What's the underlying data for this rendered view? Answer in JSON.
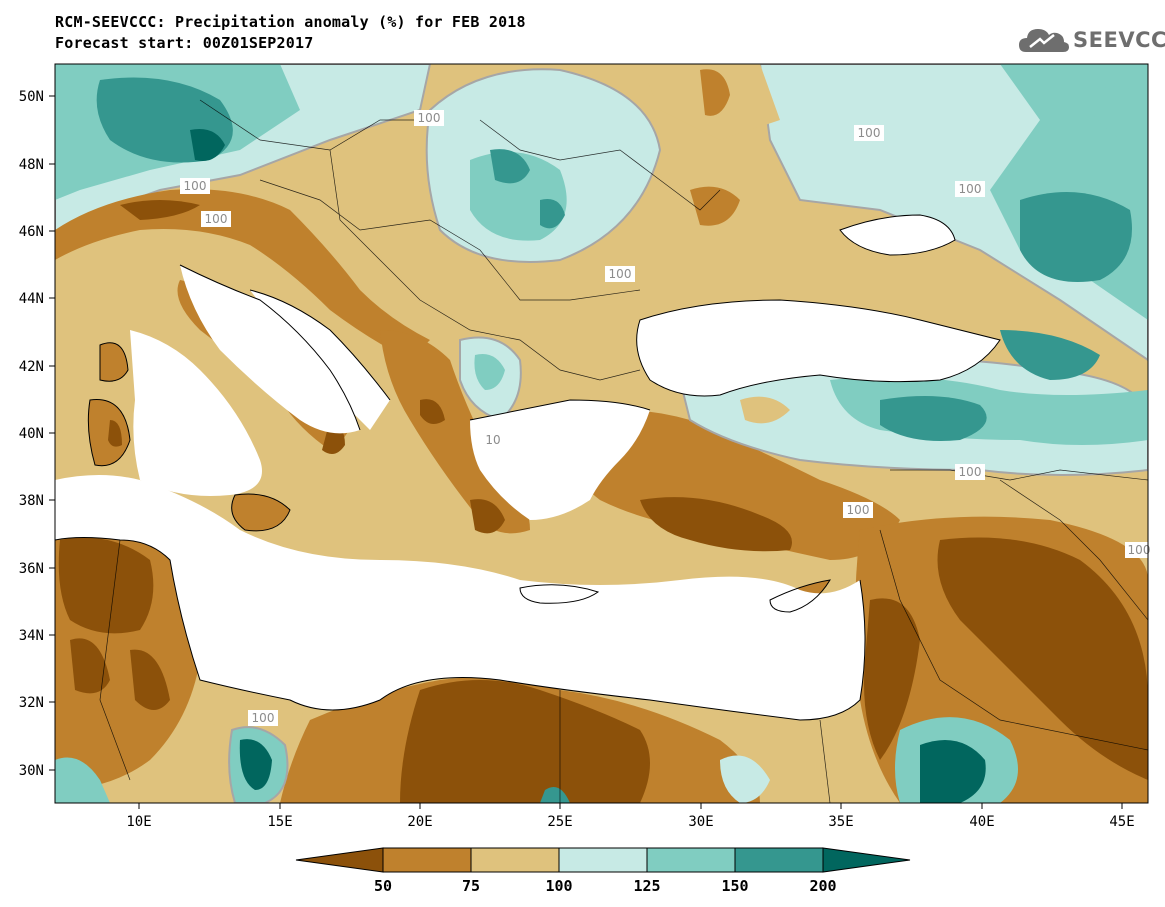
{
  "header": {
    "title": "RCM-SEEVCCC: Precipitation anomaly (%) for FEB 2018",
    "subtitle": "Forecast start: 00Z01SEP2017"
  },
  "logo": {
    "text": "SEEVCCC",
    "icon": "cloud-icon",
    "color": "#6e6e6e"
  },
  "map": {
    "lat_labels": [
      "50N",
      "48N",
      "46N",
      "44N",
      "42N",
      "40N",
      "38N",
      "36N",
      "34N",
      "32N",
      "30N"
    ],
    "lon_labels": [
      "10E",
      "15E",
      "20E",
      "25E",
      "30E",
      "35E",
      "40E",
      "45E"
    ],
    "contour_labels": [
      "100",
      "100",
      "100",
      "100",
      "100",
      "100",
      "100",
      "100",
      "10",
      "100",
      "100",
      "100"
    ],
    "colors": {
      "below_50": "#8c510a",
      "50_75": "#bf812d",
      "75_100": "#dfc27d",
      "100_125": "#c7eae5",
      "125_150": "#80cdc1",
      "150_200": "#35978f",
      "above_200": "#01665e",
      "contour": "#a6a6a6"
    }
  },
  "colorbar": {
    "labels": [
      "50",
      "75",
      "100",
      "125",
      "150",
      "200"
    ],
    "colors": [
      "#8c510a",
      "#bf812d",
      "#dfc27d",
      "#c7eae5",
      "#80cdc1",
      "#35978f",
      "#01665e"
    ]
  }
}
